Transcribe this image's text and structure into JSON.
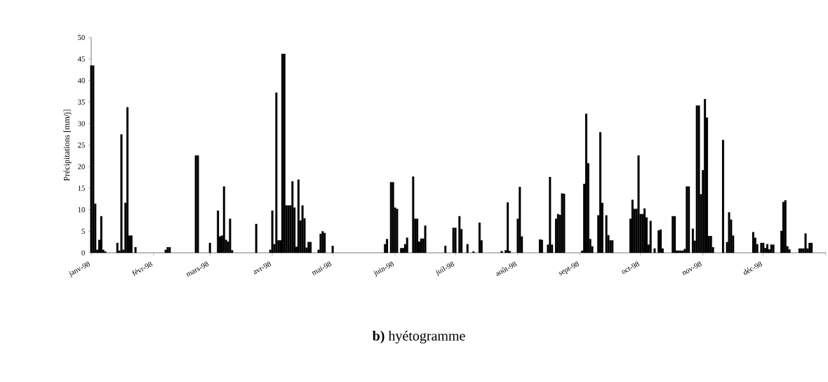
{
  "chart_data": {
    "type": "bar",
    "title": "**b)** hyétogramme",
    "ylabel": "Précipitations [mm/j]",
    "color": "#000000",
    "x": [
      "1998-01-01",
      "1998-01-02",
      "1998-01-03",
      "1998-01-04",
      "1998-01-05",
      "1998-01-06",
      "1998-01-07",
      "1998-01-08",
      "1998-01-14",
      "1998-01-15",
      "1998-01-16",
      "1998-01-17",
      "1998-01-18",
      "1998-01-19",
      "1998-01-20",
      "1998-01-21",
      "1998-01-23",
      "1998-02-07",
      "1998-02-08",
      "1998-02-09",
      "1998-02-22",
      "1998-02-23",
      "1998-03-01",
      "1998-03-05",
      "1998-03-06",
      "1998-03-07",
      "1998-03-08",
      "1998-03-09",
      "1998-03-10",
      "1998-03-11",
      "1998-03-12",
      "1998-03-24",
      "1998-03-31",
      "1998-04-01",
      "1998-04-02",
      "1998-04-03",
      "1998-04-04",
      "1998-04-05",
      "1998-04-06",
      "1998-04-07",
      "1998-04-08",
      "1998-04-09",
      "1998-04-10",
      "1998-04-11",
      "1998-04-12",
      "1998-04-13",
      "1998-04-14",
      "1998-04-15",
      "1998-04-16",
      "1998-04-17",
      "1998-04-18",
      "1998-04-19",
      "1998-04-20",
      "1998-04-24",
      "1998-04-25",
      "1998-04-26",
      "1998-04-27",
      "1998-05-01",
      "1998-05-27",
      "1998-05-28",
      "1998-05-30",
      "1998-05-31",
      "1998-06-01",
      "1998-06-02",
      "1998-06-04",
      "1998-06-05",
      "1998-06-06",
      "1998-06-07",
      "1998-06-10",
      "1998-06-11",
      "1998-06-12",
      "1998-06-13",
      "1998-06-14",
      "1998-06-15",
      "1998-06-16",
      "1998-06-26",
      "1998-06-30",
      "1998-07-01",
      "1998-07-03",
      "1998-07-04",
      "1998-07-07",
      "1998-07-10",
      "1998-07-13",
      "1998-07-14",
      "1998-07-24",
      "1998-07-26",
      "1998-07-27",
      "1998-07-28",
      "1998-08-01",
      "1998-08-02",
      "1998-08-03",
      "1998-08-12",
      "1998-08-13",
      "1998-08-16",
      "1998-08-17",
      "1998-08-18",
      "1998-08-20",
      "1998-08-21",
      "1998-08-22",
      "1998-08-23",
      "1998-08-24",
      "1998-09-02",
      "1998-09-03",
      "1998-09-04",
      "1998-09-05",
      "1998-09-06",
      "1998-09-07",
      "1998-09-10",
      "1998-09-11",
      "1998-09-12",
      "1998-09-14",
      "1998-09-15",
      "1998-09-16",
      "1998-09-17",
      "1998-09-26",
      "1998-09-27",
      "1998-09-28",
      "1998-09-29",
      "1998-09-30",
      "1998-10-01",
      "1998-10-02",
      "1998-10-03",
      "1998-10-04",
      "1998-10-05",
      "1998-10-06",
      "1998-10-08",
      "1998-10-10",
      "1998-10-11",
      "1998-10-12",
      "1998-10-17",
      "1998-10-18",
      "1998-10-19",
      "1998-10-20",
      "1998-10-21",
      "1998-10-22",
      "1998-10-23",
      "1998-10-24",
      "1998-10-25",
      "1998-10-27",
      "1998-10-28",
      "1998-10-29",
      "1998-10-30",
      "1998-10-31",
      "1998-11-01",
      "1998-11-02",
      "1998-11-03",
      "1998-11-04",
      "1998-11-05",
      "1998-11-06",
      "1998-11-11",
      "1998-11-13",
      "1998-11-14",
      "1998-11-15",
      "1998-11-16",
      "1998-11-26",
      "1998-11-27",
      "1998-11-28",
      "1998-11-30",
      "1998-12-01",
      "1998-12-02",
      "1998-12-03",
      "1998-12-04",
      "1998-12-05",
      "1998-12-06",
      "1998-12-10",
      "1998-12-11",
      "1998-12-12",
      "1998-12-13",
      "1998-12-14",
      "1998-12-19",
      "1998-12-20",
      "1998-12-21",
      "1998-12-22",
      "1998-12-23",
      "1998-12-24",
      "1998-12-25"
    ],
    "values": [
      43.5,
      43.5,
      11.4,
      0.7,
      3.0,
      8.5,
      0.7,
      0.3,
      2.3,
      0.5,
      27.5,
      0.7,
      11.6,
      33.8,
      4.0,
      4.0,
      1.3,
      0.7,
      1.3,
      1.3,
      22.6,
      22.6,
      2.3,
      9.8,
      3.8,
      4.0,
      15.4,
      3.0,
      2.6,
      7.9,
      0.6,
      6.7,
      0.7,
      9.8,
      2.0,
      37.2,
      2.9,
      2.9,
      46.2,
      46.2,
      11.0,
      11.0,
      11.0,
      16.6,
      10.5,
      1.4,
      17.0,
      7.5,
      11.0,
      8.0,
      1.2,
      2.5,
      2.5,
      0.7,
      4.4,
      5.0,
      4.6,
      1.6,
      2.0,
      3.2,
      16.4,
      16.4,
      10.5,
      10.2,
      1.1,
      1.1,
      2.0,
      3.5,
      17.7,
      7.9,
      7.9,
      2.6,
      3.3,
      3.3,
      6.3,
      1.6,
      5.8,
      5.8,
      8.5,
      5.5,
      2.0,
      0.3,
      7.0,
      2.9,
      0.4,
      0.6,
      11.7,
      0.4,
      7.9,
      15.3,
      3.8,
      3.1,
      3.0,
      1.9,
      17.6,
      1.9,
      7.9,
      9.0,
      8.8,
      13.8,
      13.7,
      0.5,
      16.0,
      32.3,
      20.8,
      3.2,
      1.5,
      8.7,
      28.0,
      11.6,
      8.7,
      4.1,
      2.9,
      2.9,
      7.9,
      12.3,
      10.2,
      10.2,
      22.6,
      9.0,
      9.0,
      10.3,
      8.2,
      1.9,
      7.4,
      1.0,
      5.2,
      5.4,
      1.0,
      8.5,
      8.5,
      0.5,
      0.5,
      0.5,
      0.5,
      0.9,
      15.4,
      15.4,
      5.6,
      2.8,
      34.2,
      34.2,
      13.6,
      19.2,
      35.7,
      31.4,
      3.9,
      3.9,
      1.3,
      26.2,
      2.5,
      9.4,
      7.7,
      4.0,
      4.8,
      3.5,
      2.0,
      2.3,
      2.3,
      1.1,
      2.0,
      0.8,
      1.9,
      1.9,
      5.1,
      11.8,
      12.2,
      1.5,
      0.8,
      1.0,
      1.0,
      1.0,
      4.5,
      1.0,
      2.3,
      2.3
    ],
    "xlim": [
      "1998-01-01",
      "1999-01-01"
    ],
    "xticks": [
      {
        "value": "1998-01-01",
        "label": "janv-98"
      },
      {
        "value": "1998-02-01",
        "label": "févr-98"
      },
      {
        "value": "1998-03-01",
        "label": "mars-98"
      },
      {
        "value": "1998-04-01",
        "label": "avr-98"
      },
      {
        "value": "1998-05-01",
        "label": "mai-98"
      },
      {
        "value": "1998-06-01",
        "label": "juin-98"
      },
      {
        "value": "1998-07-01",
        "label": "juil-98"
      },
      {
        "value": "1998-08-01",
        "label": "août-98"
      },
      {
        "value": "1998-09-01",
        "label": "sept-98"
      },
      {
        "value": "1998-10-01",
        "label": "oct-98"
      },
      {
        "value": "1998-11-01",
        "label": "nov-98"
      },
      {
        "value": "1998-12-01",
        "label": "déc-98"
      },
      {
        "value": "1999-01-01",
        "label": null
      }
    ],
    "ylim": [
      0,
      50
    ],
    "yticks": [
      0,
      5,
      10,
      15,
      20,
      25,
      30,
      35,
      40,
      45,
      50
    ]
  }
}
